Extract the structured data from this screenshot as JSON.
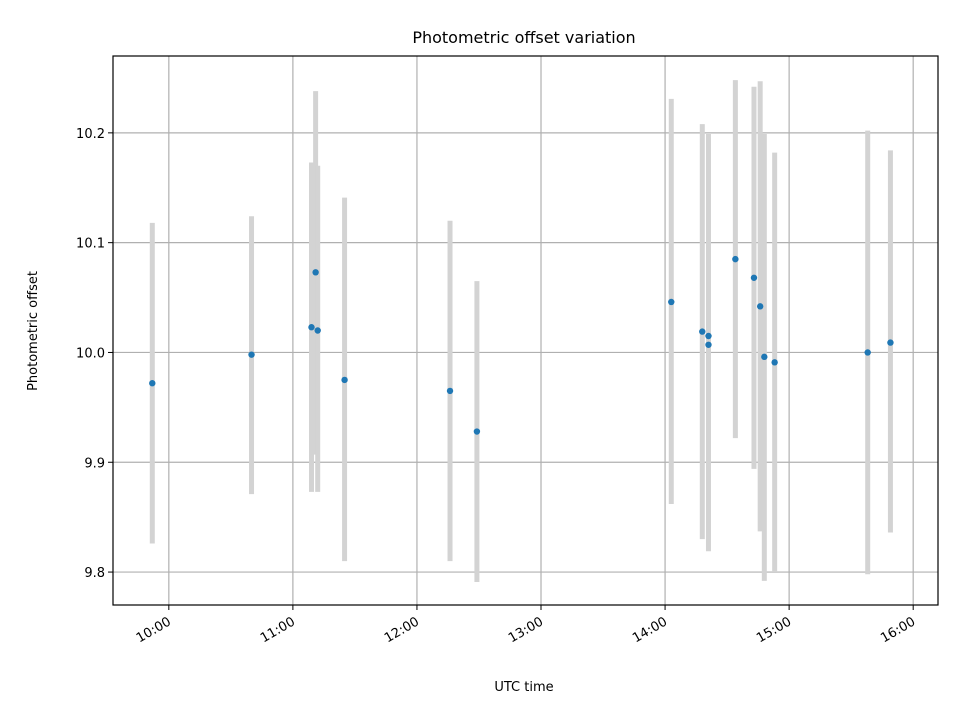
{
  "chart_data": {
    "type": "scatter",
    "title": "Photometric offset variation",
    "xlabel": "UTC time",
    "ylabel": "Photometric offset",
    "x_ticks": [
      "10:00",
      "11:00",
      "12:00",
      "13:00",
      "14:00",
      "15:00",
      "16:00"
    ],
    "y_ticks": [
      "9.8",
      "9.9",
      "10.0",
      "10.1",
      "10.2"
    ],
    "xlim": [
      "09:33",
      "16:12"
    ],
    "ylim": [
      9.77,
      10.27
    ],
    "grid": true,
    "point_color": "#1f77b4",
    "errorbar_color": "#d3d3d3",
    "points": [
      {
        "time": "09:52",
        "value": 9.972,
        "err_low": 9.826,
        "err_high": 10.118
      },
      {
        "time": "10:40",
        "value": 9.998,
        "err_low": 9.871,
        "err_high": 10.124
      },
      {
        "time": "11:09",
        "value": 10.023,
        "err_low": 9.873,
        "err_high": 10.173
      },
      {
        "time": "11:11",
        "value": 10.073,
        "err_low": 9.907,
        "err_high": 10.238
      },
      {
        "time": "11:12",
        "value": 10.02,
        "err_low": 9.873,
        "err_high": 10.17
      },
      {
        "time": "11:25",
        "value": 9.975,
        "err_low": 9.81,
        "err_high": 10.141
      },
      {
        "time": "12:16",
        "value": 9.965,
        "err_low": 9.81,
        "err_high": 10.12
      },
      {
        "time": "12:29",
        "value": 9.928,
        "err_low": 9.791,
        "err_high": 10.065
      },
      {
        "time": "14:03",
        "value": 10.046,
        "err_low": 9.862,
        "err_high": 10.231
      },
      {
        "time": "14:18",
        "value": 10.019,
        "err_low": 9.83,
        "err_high": 10.208
      },
      {
        "time": "14:21",
        "value": 10.007,
        "err_low": 9.819,
        "err_high": 10.195
      },
      {
        "time": "14:21",
        "value": 10.015,
        "err_low": 9.83,
        "err_high": 10.199
      },
      {
        "time": "14:34",
        "value": 10.085,
        "err_low": 9.922,
        "err_high": 10.248
      },
      {
        "time": "14:43",
        "value": 10.068,
        "err_low": 9.894,
        "err_high": 10.242
      },
      {
        "time": "14:46",
        "value": 10.042,
        "err_low": 9.837,
        "err_high": 10.247
      },
      {
        "time": "14:48",
        "value": 9.996,
        "err_low": 9.792,
        "err_high": 10.199
      },
      {
        "time": "14:53",
        "value": 9.991,
        "err_low": 9.8,
        "err_high": 10.182
      },
      {
        "time": "15:38",
        "value": 10.0,
        "err_low": 9.798,
        "err_high": 10.202
      },
      {
        "time": "15:49",
        "value": 10.009,
        "err_low": 9.836,
        "err_high": 10.184
      }
    ]
  }
}
